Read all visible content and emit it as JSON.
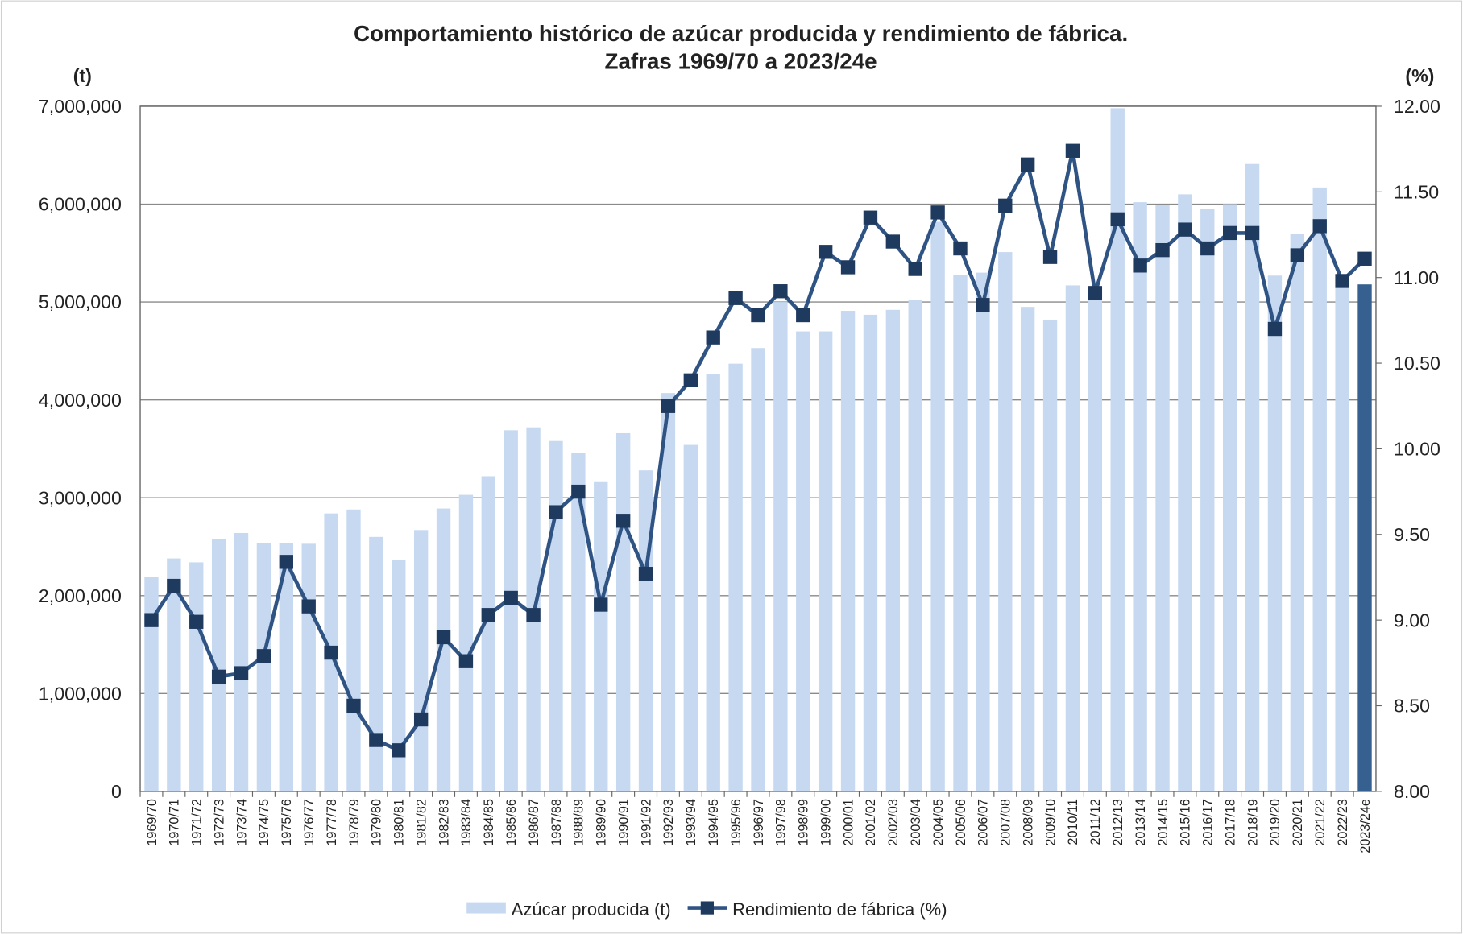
{
  "chart_data": {
    "type": "bar",
    "title": "Comportamiento histórico de azúcar producida y rendimiento de fábrica.",
    "subtitle": "Zafras 1969/70 a 2023/24e",
    "y_label": "(t)",
    "y2_label": "(%)",
    "categories": [
      "1969/70",
      "1970/71",
      "1971/72",
      "1972/73",
      "1973/74",
      "1974/75",
      "1975/76",
      "1976/77",
      "1977/78",
      "1978/79",
      "1979/80",
      "1980/81",
      "1981/82",
      "1982/83",
      "1983/84",
      "1984/85",
      "1985/86",
      "1986/87",
      "1987/88",
      "1988/89",
      "1989/90",
      "1990/91",
      "1991/92",
      "1992/93",
      "1993/94",
      "1994/95",
      "1995/96",
      "1996/97",
      "1997/98",
      "1998/99",
      "1999/00",
      "2000/01",
      "2001/02",
      "2002/03",
      "2003/04",
      "2004/05",
      "2005/06",
      "2006/07",
      "2007/08",
      "2008/09",
      "2009/10",
      "2010/11",
      "2011/12",
      "2012/13",
      "2013/14",
      "2014/15",
      "2015/16",
      "2016/17",
      "2017/18",
      "2018/19",
      "2019/20",
      "2020/21",
      "2021/22",
      "2022/23",
      "2023/24e"
    ],
    "series": [
      {
        "name": "Azúcar producida (t)",
        "type": "bar",
        "color": "#c6d9f1",
        "highlight_index": 54,
        "highlight_color": "#35608f",
        "values": [
          2190000,
          2380000,
          2340000,
          2580000,
          2640000,
          2540000,
          2540000,
          2530000,
          2840000,
          2880000,
          2600000,
          2360000,
          2670000,
          2890000,
          3030000,
          3220000,
          3690000,
          3720000,
          3580000,
          3460000,
          3160000,
          3660000,
          3280000,
          4070000,
          3540000,
          4260000,
          4370000,
          4530000,
          5000000,
          4700000,
          4700000,
          4910000,
          4870000,
          4920000,
          5020000,
          5820000,
          5280000,
          5300000,
          5510000,
          4950000,
          4820000,
          5170000,
          5070000,
          6980000,
          6020000,
          5990000,
          6100000,
          5950000,
          6000000,
          6410000,
          5270000,
          5700000,
          6170000,
          5150000,
          5180000
        ]
      },
      {
        "name": "Rendimiento de fábrica (%)",
        "type": "line",
        "axis": "y2",
        "color": "#2f5484",
        "values": [
          9.0,
          9.2,
          8.99,
          8.67,
          8.69,
          8.79,
          9.34,
          9.08,
          8.81,
          8.5,
          8.3,
          8.24,
          8.42,
          8.9,
          8.76,
          9.03,
          9.13,
          9.03,
          9.63,
          9.75,
          9.09,
          9.58,
          9.27,
          10.25,
          10.4,
          10.65,
          10.88,
          10.78,
          10.92,
          10.78,
          11.15,
          11.06,
          11.35,
          11.21,
          11.05,
          11.38,
          11.17,
          10.84,
          11.42,
          11.66,
          11.12,
          11.74,
          10.91,
          11.34,
          11.07,
          11.16,
          11.28,
          11.17,
          11.26,
          11.26,
          10.7,
          11.13,
          11.3,
          10.98,
          11.11
        ]
      }
    ],
    "ylim": [
      0,
      7000000
    ],
    "yticks": [
      0,
      {
        "value": 1000000,
        "label": "1,000,000"
      },
      {
        "value": 2000000,
        "label": "2,000,000"
      },
      {
        "value": 3000000,
        "label": "3,000,000"
      },
      {
        "value": 4000000,
        "label": "4,000,000"
      },
      {
        "value": 5000000,
        "label": "5,000,000"
      },
      {
        "value": 6000000,
        "label": "6,000,000"
      },
      {
        "value": 7000000,
        "label": "7,000,000"
      }
    ],
    "y2lim": [
      8,
      12
    ],
    "y2ticks": [
      {
        "value": 8,
        "label": "8.00"
      },
      {
        "value": 8.5,
        "label": "8.50"
      },
      {
        "value": 9,
        "label": "9.00"
      },
      {
        "value": 9.5,
        "label": "9.50"
      },
      {
        "value": 10,
        "label": "10.00"
      },
      {
        "value": 10.5,
        "label": "10.50"
      },
      {
        "value": 11,
        "label": "11.00"
      },
      {
        "value": 11.5,
        "label": "11.50"
      },
      {
        "value": 12,
        "label": "12.00"
      }
    ],
    "grid": true,
    "legend": "bottom"
  }
}
